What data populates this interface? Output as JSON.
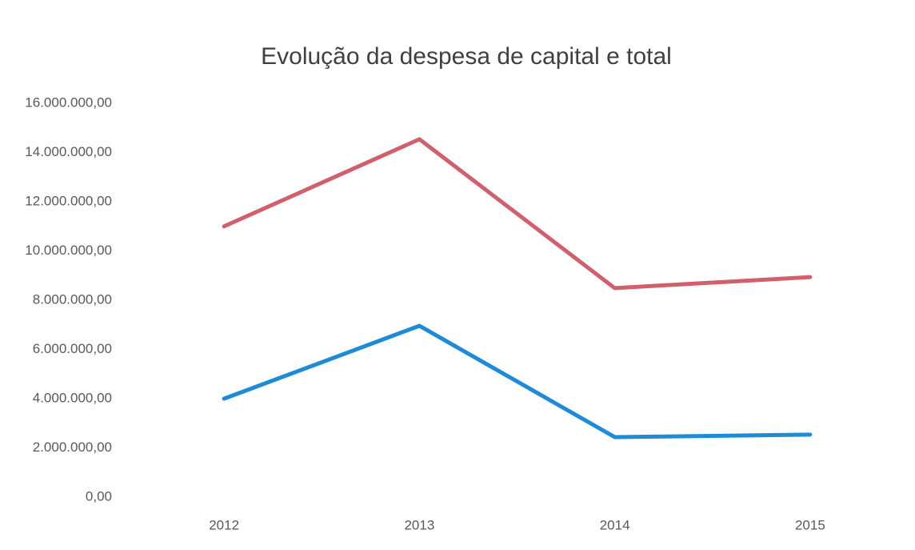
{
  "chart_data": {
    "type": "line",
    "title": "Evolução da despesa de capital e total",
    "categories": [
      "2012",
      "2013",
      "2014",
      "2015"
    ],
    "series": [
      {
        "color": "#d0606e",
        "values": [
          11000000,
          14540000,
          8490000,
          8940000
        ]
      },
      {
        "color": "#1f8ad6",
        "values": [
          4000000,
          6960000,
          2440000,
          2540000
        ]
      }
    ],
    "ylim": [
      0,
      16000000
    ],
    "yticks": [
      {
        "value": 0,
        "label": "0,00"
      },
      {
        "value": 2000000,
        "label": "2.000.000,00"
      },
      {
        "value": 4000000,
        "label": "4.000.000,00"
      },
      {
        "value": 6000000,
        "label": "6.000.000,00"
      },
      {
        "value": 8000000,
        "label": "8.000.000,00"
      },
      {
        "value": 10000000,
        "label": "10.000.000,00"
      },
      {
        "value": 12000000,
        "label": "12.000.000,00"
      },
      {
        "value": 14000000,
        "label": "14.000.000,00"
      },
      {
        "value": 16000000,
        "label": "16.000.000,00"
      }
    ],
    "grid": false
  }
}
